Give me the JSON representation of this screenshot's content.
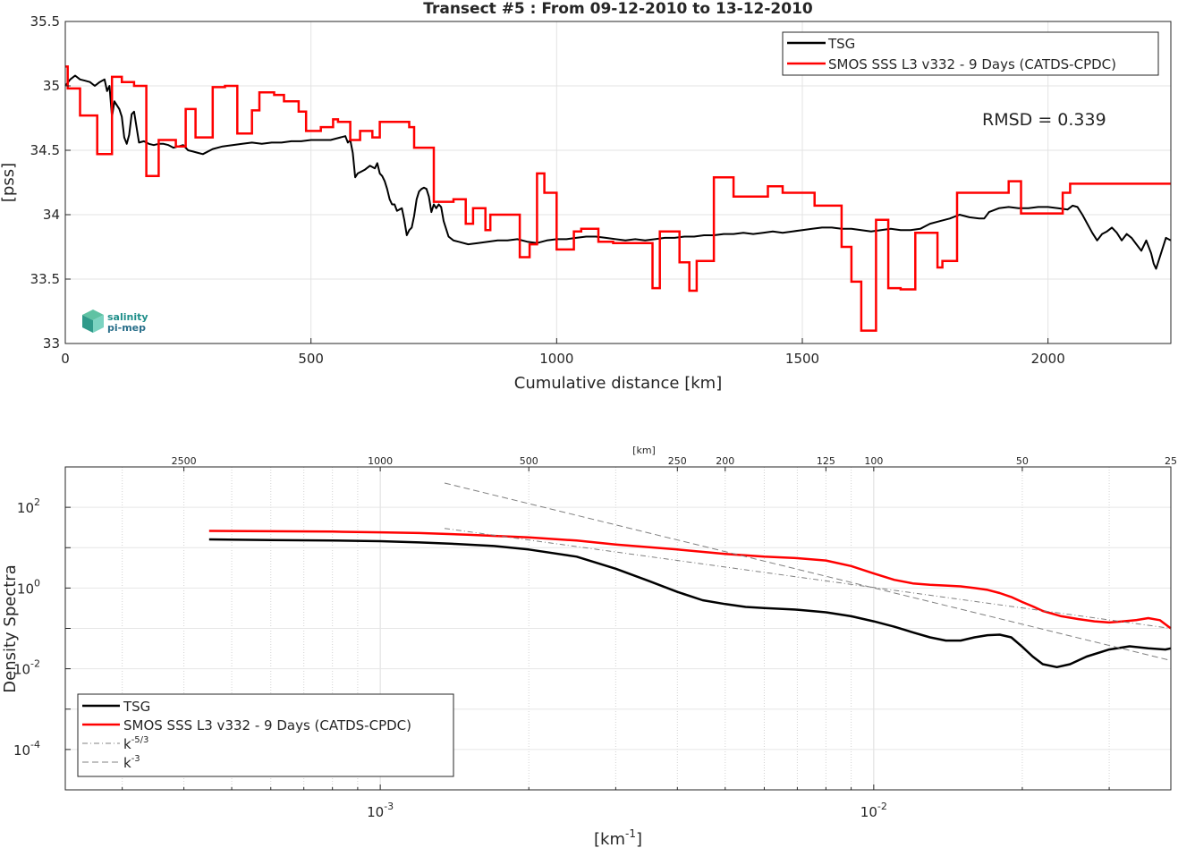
{
  "chart_data": [
    {
      "type": "line",
      "title": "Transect #5 : From 09-12-2010 to 13-12-2010",
      "xlabel": "Cumulative distance [km]",
      "ylabel": "[pss]",
      "xlim": [
        0,
        2250
      ],
      "ylim": [
        33,
        35.5
      ],
      "xticks": [
        0,
        500,
        1000,
        1500,
        2000
      ],
      "yticks": [
        33,
        33.5,
        34,
        34.5,
        35,
        35.5
      ],
      "grid": true,
      "legend_position": "top-right",
      "annotation": "RMSD = 0.339",
      "logo": [
        "salinity",
        "pi-mep"
      ],
      "series": [
        {
          "name": "TSG",
          "color": "#000000",
          "x": [
            0,
            10,
            20,
            30,
            40,
            50,
            60,
            70,
            80,
            85,
            90,
            95,
            100,
            110,
            115,
            120,
            125,
            130,
            135,
            140,
            150,
            160,
            170,
            180,
            190,
            200,
            210,
            220,
            230,
            240,
            250,
            260,
            270,
            280,
            300,
            320,
            340,
            360,
            380,
            400,
            420,
            440,
            460,
            480,
            500,
            520,
            540,
            560,
            570,
            575,
            580,
            585,
            590,
            595,
            600,
            610,
            620,
            630,
            635,
            640,
            645,
            650,
            655,
            660,
            665,
            670,
            675,
            680,
            685,
            690,
            695,
            700,
            705,
            710,
            715,
            720,
            725,
            730,
            735,
            740,
            745,
            750,
            755,
            760,
            765,
            770,
            780,
            790,
            800,
            820,
            840,
            860,
            880,
            900,
            920,
            940,
            960,
            980,
            1000,
            1020,
            1040,
            1060,
            1080,
            1100,
            1120,
            1140,
            1160,
            1180,
            1200,
            1220,
            1240,
            1260,
            1280,
            1300,
            1320,
            1340,
            1360,
            1380,
            1400,
            1420,
            1440,
            1460,
            1480,
            1500,
            1520,
            1540,
            1560,
            1580,
            1600,
            1620,
            1640,
            1660,
            1680,
            1700,
            1720,
            1740,
            1760,
            1780,
            1800,
            1820,
            1840,
            1860,
            1870,
            1880,
            1900,
            1920,
            1940,
            1960,
            1980,
            2000,
            2020,
            2040,
            2050,
            2060,
            2070,
            2080,
            2090,
            2100,
            2110,
            2120,
            2130,
            2140,
            2150,
            2160,
            2170,
            2180,
            2190,
            2200,
            2210,
            2215,
            2220,
            2230,
            2240,
            2250
          ],
          "y": [
            35.0,
            35.05,
            35.08,
            35.05,
            35.04,
            35.03,
            35.0,
            35.03,
            35.05,
            34.96,
            35.0,
            34.76,
            34.88,
            34.82,
            34.76,
            34.6,
            34.55,
            34.62,
            34.78,
            34.8,
            34.56,
            34.57,
            34.55,
            34.54,
            34.55,
            34.55,
            34.54,
            34.52,
            34.53,
            34.54,
            34.5,
            34.49,
            34.48,
            34.47,
            34.51,
            34.53,
            34.54,
            34.55,
            34.56,
            34.55,
            34.56,
            34.56,
            34.57,
            34.57,
            34.58,
            34.58,
            34.58,
            34.6,
            34.61,
            34.56,
            34.58,
            34.48,
            34.29,
            34.32,
            34.33,
            34.35,
            34.38,
            34.36,
            34.4,
            34.32,
            34.3,
            34.26,
            34.2,
            34.12,
            34.08,
            34.08,
            34.03,
            34.04,
            34.05,
            33.96,
            33.84,
            33.88,
            33.9,
            33.99,
            34.12,
            34.18,
            34.2,
            34.21,
            34.2,
            34.14,
            34.02,
            34.08,
            34.05,
            34.08,
            34.06,
            33.95,
            33.83,
            33.8,
            33.79,
            33.77,
            33.78,
            33.79,
            33.8,
            33.8,
            33.81,
            33.79,
            33.78,
            33.8,
            33.81,
            33.81,
            33.82,
            33.83,
            33.83,
            33.82,
            33.81,
            33.8,
            33.81,
            33.8,
            33.81,
            33.82,
            33.82,
            33.83,
            33.83,
            33.84,
            33.84,
            33.85,
            33.85,
            33.86,
            33.85,
            33.86,
            33.87,
            33.86,
            33.87,
            33.88,
            33.89,
            33.9,
            33.9,
            33.89,
            33.89,
            33.88,
            33.87,
            33.88,
            33.89,
            33.88,
            33.88,
            33.89,
            33.93,
            33.95,
            33.97,
            34.0,
            33.98,
            33.97,
            33.97,
            34.02,
            34.05,
            34.06,
            34.05,
            34.05,
            34.06,
            34.06,
            34.05,
            34.04,
            34.07,
            34.06,
            34.0,
            33.93,
            33.86,
            33.8,
            33.85,
            33.87,
            33.9,
            33.86,
            33.8,
            33.85,
            33.82,
            33.77,
            33.72,
            33.8,
            33.7,
            33.62,
            33.58,
            33.7,
            33.82,
            33.8
          ]
        },
        {
          "name": "SMOS SSS L3 v332 - 9 Days (CATDS-CPDC)",
          "color": "#ff0000",
          "x": [
            0,
            5,
            30,
            65,
            95,
            115,
            140,
            165,
            190,
            225,
            245,
            265,
            300,
            325,
            350,
            380,
            395,
            425,
            445,
            455,
            475,
            490,
            505,
            520,
            545,
            555,
            570,
            580,
            585,
            600,
            610,
            620,
            625,
            640,
            660,
            680,
            700,
            710,
            730,
            750,
            760,
            790,
            815,
            830,
            855,
            865,
            890,
            925,
            945,
            960,
            975,
            1000,
            1010,
            1035,
            1050,
            1085,
            1100,
            1115,
            1135,
            1165,
            1195,
            1210,
            1225,
            1250,
            1255,
            1270,
            1285,
            1320,
            1360,
            1365,
            1390,
            1395,
            1430,
            1435,
            1445,
            1460,
            1480,
            1500,
            1525,
            1540,
            1565,
            1580,
            1600,
            1610,
            1620,
            1625,
            1650,
            1655,
            1670,
            1675,
            1690,
            1700,
            1720,
            1730,
            1765,
            1775,
            1785,
            1815,
            1825,
            1855,
            1865,
            1890,
            1920,
            1935,
            1945,
            1985,
            2030,
            2045,
            2055,
            2075,
            2090,
            2115,
            2125,
            2160,
            2180,
            2195,
            2200,
            2210,
            2225,
            2250
          ],
          "y": [
            35.15,
            34.98,
            34.77,
            34.47,
            35.07,
            35.03,
            35.0,
            34.3,
            34.58,
            34.53,
            34.82,
            34.6,
            34.99,
            35.0,
            34.63,
            34.81,
            34.95,
            34.93,
            34.88,
            34.88,
            34.8,
            34.65,
            34.65,
            34.68,
            34.74,
            34.72,
            34.72,
            34.58,
            34.58,
            34.65,
            34.65,
            34.65,
            34.6,
            34.72,
            34.72,
            34.72,
            34.68,
            34.52,
            34.52,
            34.1,
            34.1,
            34.12,
            33.93,
            34.05,
            33.88,
            34.0,
            34.0,
            33.67,
            33.77,
            34.32,
            34.17,
            33.73,
            33.73,
            33.87,
            33.89,
            33.79,
            33.79,
            33.78,
            33.78,
            33.78,
            33.43,
            33.87,
            33.87,
            33.63,
            33.63,
            33.41,
            33.64,
            34.29,
            34.14,
            34.14,
            34.14,
            34.14,
            34.22,
            34.22,
            34.22,
            34.17,
            34.17,
            34.17,
            34.07,
            34.07,
            34.07,
            33.75,
            33.48,
            33.48,
            33.1,
            33.1,
            33.96,
            33.96,
            33.96,
            33.43,
            33.43,
            33.42,
            33.42,
            33.86,
            33.86,
            33.59,
            33.64,
            34.17,
            34.17,
            34.17,
            34.17,
            34.17,
            34.26,
            34.26,
            34.01,
            34.01,
            34.17,
            34.24,
            34.24,
            34.24,
            34.24,
            34.24,
            34.24,
            34.24,
            34.24,
            34.24,
            34.24,
            34.24,
            34.24,
            34.24
          ]
        }
      ]
    },
    {
      "type": "line",
      "xlabel": "[km-1]",
      "xlabel_main": "[km",
      "xlabel_sup": "-1",
      "xlabel_tail": "]",
      "top_xlabel": "[km]",
      "ylabel": "Density Spectra",
      "xscale": "log",
      "yscale": "log",
      "xlim": [
        0.00023,
        0.04
      ],
      "ylim": [
        1e-05,
        1000
      ],
      "xticks": [
        0.001,
        0.01
      ],
      "xtick_base": "10",
      "xtick_exps": [
        "-3",
        "-2"
      ],
      "yticks": [
        0.0001,
        0.01,
        1,
        100
      ],
      "ytick_base": "10",
      "ytick_exps": [
        "-4",
        "-2",
        "0",
        "2"
      ],
      "top_ticks_km": [
        2500,
        1000,
        500,
        250,
        200,
        125,
        100,
        50,
        25
      ],
      "top_tick_labels": [
        "2500",
        "1000",
        "500",
        "250",
        "200",
        "125",
        "100",
        "50",
        "25"
      ],
      "grid": true,
      "legend_position": "bottom-left",
      "legend_entries": [
        "TSG",
        "SMOS SSS L3 v332 - 9 Days (CATDS-CPDC)",
        "k-5/3",
        "k-3"
      ],
      "legend_k53": "k",
      "legend_k53_sup": "-5/3",
      "legend_k3": "k",
      "legend_k3_sup": "-3",
      "series": [
        {
          "name": "TSG",
          "color": "#000000",
          "x": [
            0.00045,
            0.0006,
            0.0008,
            0.001,
            0.0012,
            0.0014,
            0.0017,
            0.002,
            0.0025,
            0.003,
            0.0035,
            0.004,
            0.0045,
            0.005,
            0.0055,
            0.006,
            0.007,
            0.008,
            0.009,
            0.01,
            0.011,
            0.012,
            0.013,
            0.014,
            0.015,
            0.016,
            0.017,
            0.018,
            0.019,
            0.02,
            0.021,
            0.022,
            0.0235,
            0.025,
            0.027,
            0.03,
            0.033,
            0.036,
            0.039,
            0.04
          ],
          "y": [
            16,
            15.5,
            15,
            14.5,
            13.5,
            12.5,
            11,
            9,
            6,
            3,
            1.5,
            0.8,
            0.5,
            0.4,
            0.34,
            0.32,
            0.29,
            0.25,
            0.2,
            0.15,
            0.11,
            0.08,
            0.06,
            0.05,
            0.05,
            0.06,
            0.068,
            0.07,
            0.06,
            0.035,
            0.02,
            0.013,
            0.011,
            0.013,
            0.02,
            0.03,
            0.036,
            0.032,
            0.03,
            0.032
          ]
        },
        {
          "name": "SMOS SSS L3 v332 - 9 Days (CATDS-CPDC)",
          "color": "#ff0000",
          "x": [
            0.00045,
            0.0006,
            0.0008,
            0.001,
            0.0012,
            0.0015,
            0.002,
            0.0025,
            0.003,
            0.004,
            0.005,
            0.006,
            0.007,
            0.008,
            0.009,
            0.01,
            0.011,
            0.012,
            0.013,
            0.014,
            0.015,
            0.016,
            0.017,
            0.018,
            0.019,
            0.02,
            0.021,
            0.022,
            0.024,
            0.026,
            0.028,
            0.03,
            0.032,
            0.034,
            0.036,
            0.038,
            0.04
          ],
          "y": [
            26,
            25.5,
            25,
            24,
            23,
            21,
            18,
            15,
            12,
            9,
            7,
            6,
            5.5,
            4.8,
            3.5,
            2.3,
            1.6,
            1.3,
            1.2,
            1.15,
            1.1,
            1.0,
            0.9,
            0.75,
            0.6,
            0.45,
            0.35,
            0.27,
            0.2,
            0.17,
            0.15,
            0.14,
            0.15,
            0.16,
            0.18,
            0.16,
            0.1
          ]
        },
        {
          "name": "k-5/3",
          "color": "#808080",
          "style": "dashdot",
          "x": [
            0.00135,
            0.04
          ],
          "y": [
            30,
            0.1
          ]
        },
        {
          "name": "k-3",
          "color": "#808080",
          "style": "dashed",
          "x": [
            0.00135,
            0.04
          ],
          "y": [
            400,
            0.016
          ]
        }
      ]
    }
  ]
}
